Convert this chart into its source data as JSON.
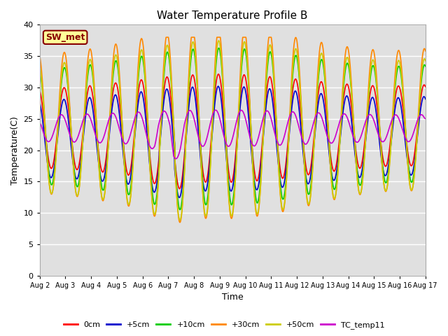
{
  "title": "Water Temperature Profile B",
  "xlabel": "Time",
  "ylabel": "Temperature(C)",
  "ylim": [
    0,
    40
  ],
  "yticks": [
    0,
    5,
    10,
    15,
    20,
    25,
    30,
    35,
    40
  ],
  "xtick_labels": [
    "Aug 2",
    "Aug 3",
    "Aug 4",
    "Aug 5",
    "Aug 6",
    "Aug 7",
    "Aug 8",
    "Aug 9",
    "Aug 10",
    "Aug 11",
    "Aug 12",
    "Aug 13",
    "Aug 14",
    "Aug 15",
    "Aug 16",
    "Aug 17"
  ],
  "background_color": "#e0e0e0",
  "lines": [
    {
      "label": "0cm",
      "color": "#ff0000",
      "lw": 1.2
    },
    {
      "label": "+5cm",
      "color": "#0000cc",
      "lw": 1.2
    },
    {
      "label": "+10cm",
      "color": "#00cc00",
      "lw": 1.2
    },
    {
      "label": "+30cm",
      "color": "#ff8800",
      "lw": 1.2
    },
    {
      "label": "+50cm",
      "color": "#cccc00",
      "lw": 1.2
    },
    {
      "label": "TC_temp11",
      "color": "#cc00cc",
      "lw": 1.2
    }
  ],
  "annotation_text": "SW_met",
  "annotation_box_color": "#ffff99",
  "annotation_border_color": "#880000",
  "title_fontsize": 11,
  "axis_label_fontsize": 9,
  "tick_fontsize": 8
}
